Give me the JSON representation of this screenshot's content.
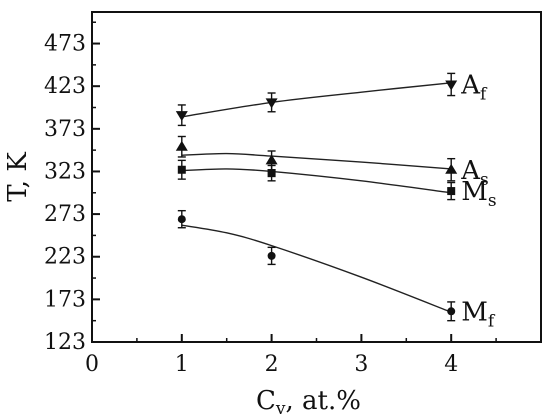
{
  "chart_data": {
    "type": "scatter",
    "title": "",
    "ylabel": "T, K",
    "xlabel_main": "C",
    "xlabel_sub": "v",
    "xlabel_rest": ", at.%",
    "x_ticks": [
      0,
      1,
      2,
      3,
      4
    ],
    "y_ticks": [
      123,
      173,
      223,
      273,
      323,
      373,
      423,
      473
    ],
    "xlim": [
      0,
      5
    ],
    "ylim": [
      123,
      510
    ],
    "grid": false,
    "series": [
      {
        "label_main": "A",
        "label_sub": "f",
        "marker": "triangle-down",
        "points": [
          {
            "x": 1,
            "y": 389,
            "err": 12
          },
          {
            "x": 2,
            "y": 404,
            "err": 11
          },
          {
            "x": 4,
            "y": 425,
            "err": 13
          }
        ],
        "fit": [
          [
            1,
            387
          ],
          [
            2,
            404
          ],
          [
            3,
            416
          ],
          [
            4,
            427
          ]
        ]
      },
      {
        "label_main": "A",
        "label_sub": "s",
        "marker": "triangle-up",
        "points": [
          {
            "x": 1,
            "y": 352,
            "err": 12
          },
          {
            "x": 2,
            "y": 336,
            "err": 11
          },
          {
            "x": 4,
            "y": 325,
            "err": 13
          }
        ],
        "fit": [
          [
            1,
            342
          ],
          [
            1.5,
            344
          ],
          [
            2,
            341
          ],
          [
            3,
            334
          ],
          [
            4,
            326
          ]
        ]
      },
      {
        "label_main": "M",
        "label_sub": "s",
        "marker": "square",
        "points": [
          {
            "x": 1,
            "y": 325,
            "err": 11
          },
          {
            "x": 2,
            "y": 321,
            "err": 9
          },
          {
            "x": 4,
            "y": 300,
            "err": 10
          }
        ],
        "fit": [
          [
            1,
            324
          ],
          [
            1.5,
            326
          ],
          [
            2,
            323
          ],
          [
            3,
            312
          ],
          [
            4,
            298
          ]
        ]
      },
      {
        "label_main": "M",
        "label_sub": "f",
        "marker": "circle",
        "points": [
          {
            "x": 1,
            "y": 267,
            "err": 10
          },
          {
            "x": 2,
            "y": 224,
            "err": 10
          },
          {
            "x": 4,
            "y": 159,
            "err": 11
          }
        ],
        "fit": [
          [
            1,
            260
          ],
          [
            1.5,
            251
          ],
          [
            2,
            236
          ],
          [
            3,
            199
          ],
          [
            4,
            158
          ]
        ]
      }
    ]
  }
}
